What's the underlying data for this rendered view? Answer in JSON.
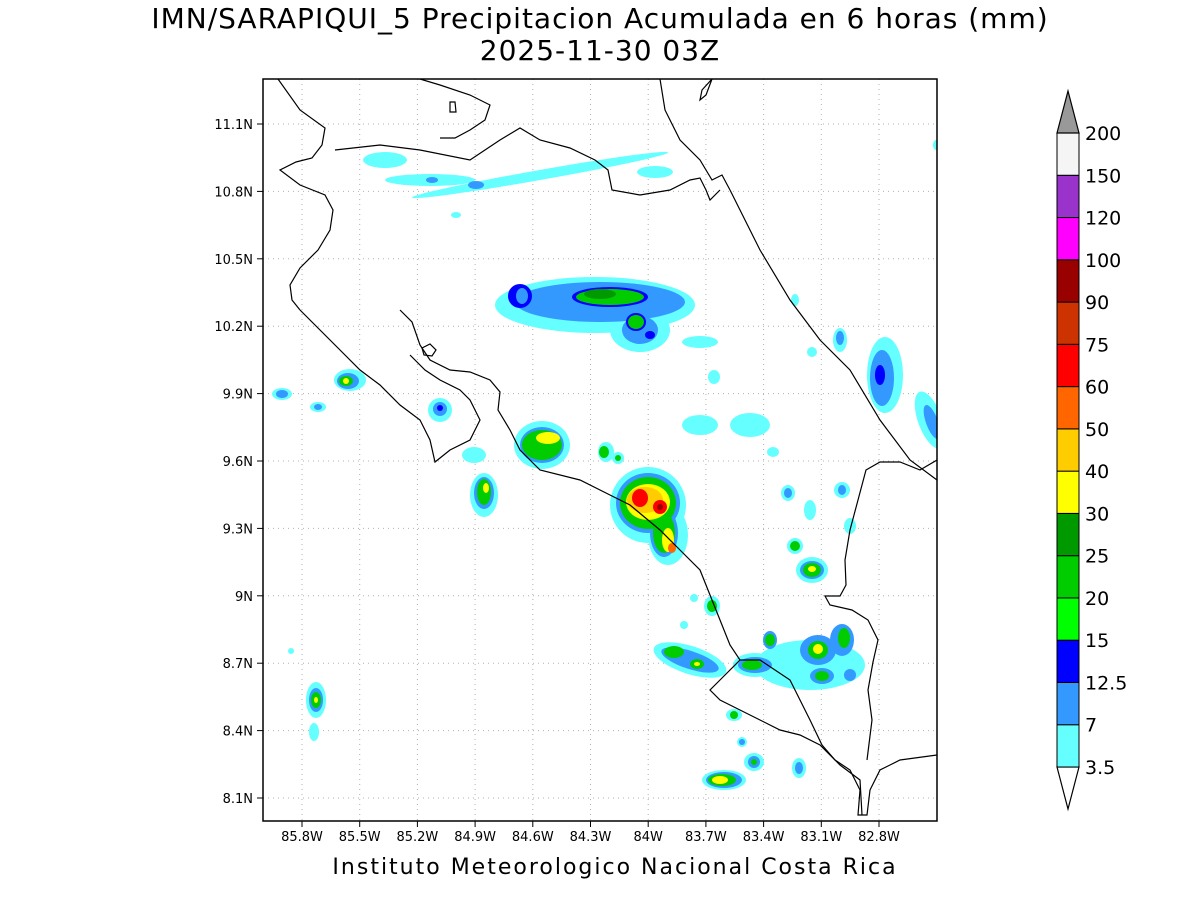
{
  "title": {
    "line1": "IMN/SARAPIQUI_5 Precipitacion Acumulada en 6 horas (mm)",
    "line2": "2025-11-30 03Z"
  },
  "axes": {
    "lat_ticks": [
      "11.1N",
      "10.8N",
      "10.5N",
      "10.2N",
      "9.9N",
      "9.6N",
      "9.3N",
      "9N",
      "8.7N",
      "8.4N",
      "8.1N"
    ],
    "lon_ticks": [
      "85.8W",
      "85.5W",
      "85.2W",
      "84.9W",
      "84.6W",
      "84.3W",
      "84W",
      "83.7W",
      "83.4W",
      "83.1W",
      "82.8W"
    ],
    "grid": true
  },
  "colorbar": {
    "levels": [
      "3.5",
      "7",
      "12.5",
      "15",
      "20",
      "25",
      "30",
      "40",
      "50",
      "60",
      "75",
      "90",
      "100",
      "120",
      "150",
      "200"
    ],
    "colors": [
      "#66ffff",
      "#3399ff",
      "#0000ff",
      "#00ff00",
      "#00cc00",
      "#009900",
      "#ffff00",
      "#ffcc00",
      "#ff6600",
      "#ff0000",
      "#cc3300",
      "#990000",
      "#ff00ff",
      "#9933cc",
      "#f5f5f5",
      "#999999"
    ]
  },
  "credit": "Instituto Meteorologico Nacional Costa Rica"
}
